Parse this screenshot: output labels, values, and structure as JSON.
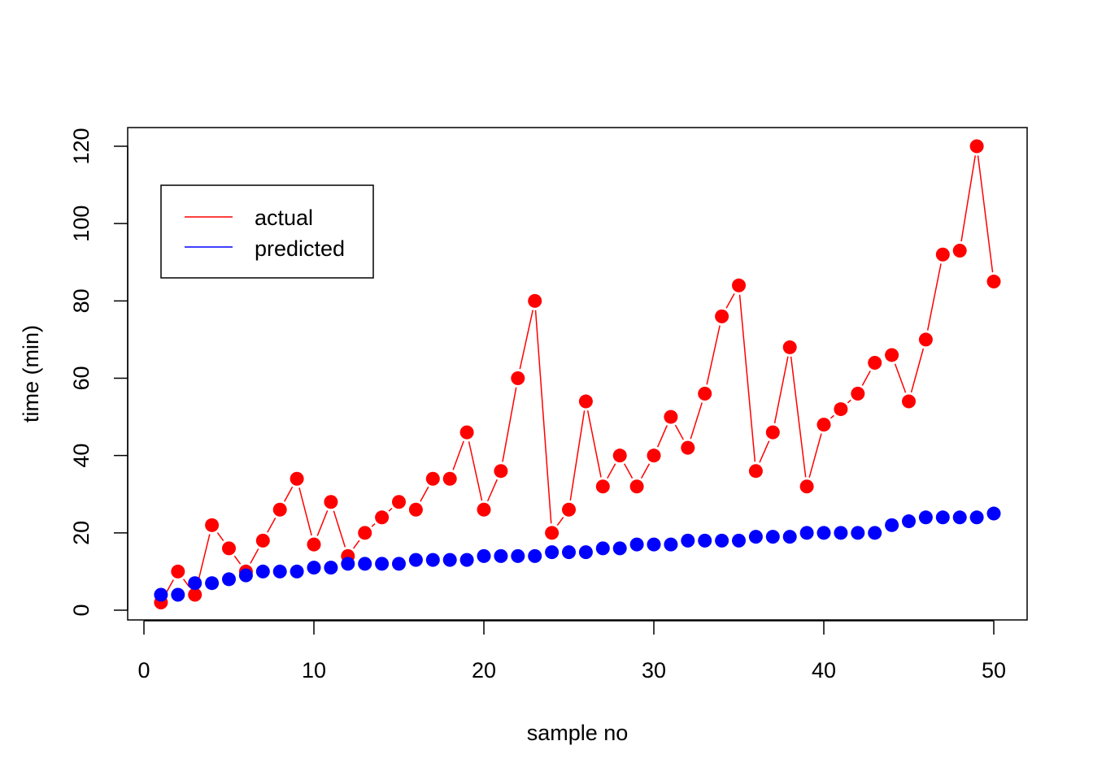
{
  "chart_data": {
    "type": "line",
    "xlabel": "sample no",
    "ylabel": "time (min)",
    "xlim": [
      0,
      50
    ],
    "ylim": [
      0,
      120
    ],
    "xticks": [
      0,
      10,
      20,
      30,
      40,
      50
    ],
    "yticks": [
      0,
      20,
      40,
      60,
      80,
      100,
      120
    ],
    "grid": false,
    "legend_position": "top-left",
    "x": [
      1,
      2,
      3,
      4,
      5,
      6,
      7,
      8,
      9,
      10,
      11,
      12,
      13,
      14,
      15,
      16,
      17,
      18,
      19,
      20,
      21,
      22,
      23,
      24,
      25,
      26,
      27,
      28,
      29,
      30,
      31,
      32,
      33,
      34,
      35,
      36,
      37,
      38,
      39,
      40,
      41,
      42,
      43,
      44,
      45,
      46,
      47,
      48,
      49,
      50
    ],
    "series": [
      {
        "name": "actual",
        "color": "#ff0000",
        "lines": true,
        "values": [
          2,
          10,
          4,
          22,
          16,
          10,
          18,
          26,
          34,
          17,
          28,
          14,
          20,
          24,
          28,
          26,
          34,
          34,
          46,
          26,
          36,
          60,
          80,
          20,
          26,
          54,
          32,
          40,
          32,
          40,
          50,
          42,
          56,
          76,
          84,
          36,
          46,
          68,
          32,
          48,
          52,
          56,
          64,
          66,
          54,
          70,
          92,
          93,
          120,
          85
        ]
      },
      {
        "name": "predicted",
        "color": "#0000ff",
        "lines": false,
        "values": [
          4,
          4,
          7,
          7,
          8,
          9,
          10,
          10,
          10,
          11,
          11,
          12,
          12,
          12,
          12,
          13,
          13,
          13,
          13,
          14,
          14,
          14,
          14,
          15,
          15,
          15,
          16,
          16,
          17,
          17,
          17,
          18,
          18,
          18,
          18,
          19,
          19,
          19,
          20,
          20,
          20,
          20,
          20,
          22,
          23,
          24,
          24,
          24,
          24,
          25
        ]
      }
    ]
  }
}
